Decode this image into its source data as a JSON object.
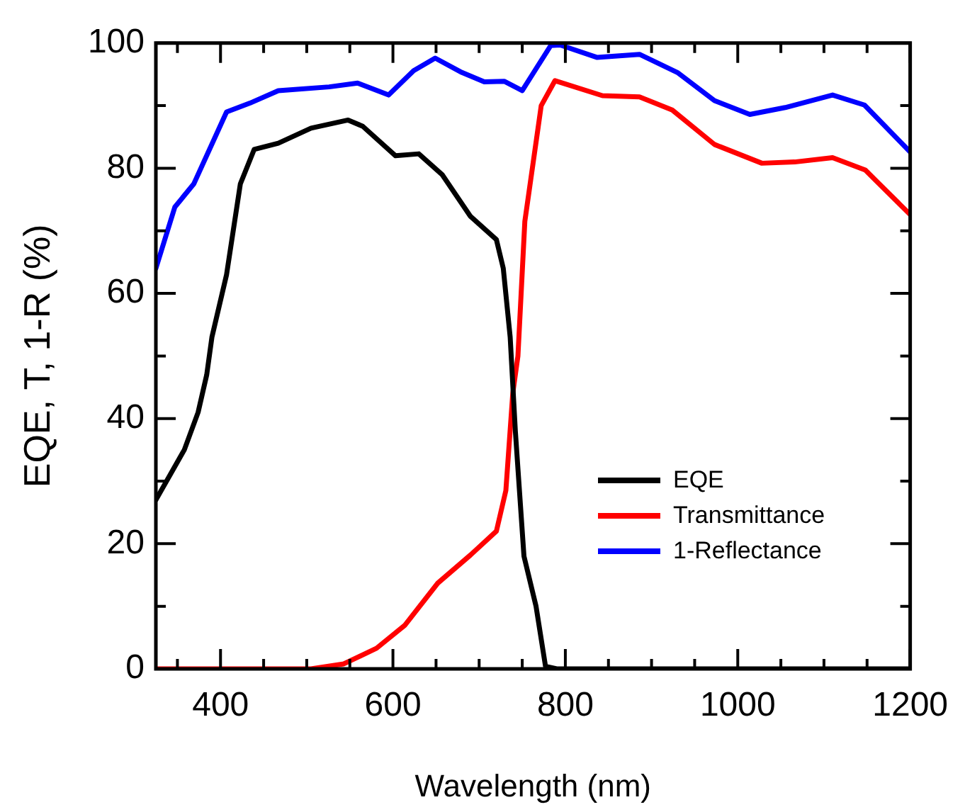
{
  "chart_data": {
    "type": "line",
    "xlabel": "Wavelength (nm)",
    "ylabel": "EQE, T, 1-R (%)",
    "xlim": [
      325,
      1200
    ],
    "ylim": [
      0,
      100
    ],
    "xticks": [
      {
        "value": 350,
        "label": null
      },
      400,
      {
        "value": 450,
        "label": null
      },
      {
        "value": 500,
        "label": null
      },
      {
        "value": 550,
        "label": null
      },
      600,
      {
        "value": 650,
        "label": null
      },
      {
        "value": 700,
        "label": null
      },
      {
        "value": 750,
        "label": null
      },
      800,
      {
        "value": 850,
        "label": null
      },
      {
        "value": 900,
        "label": null
      },
      {
        "value": 950,
        "label": null
      },
      1000,
      {
        "value": 1050,
        "label": null
      },
      {
        "value": 1100,
        "label": null
      },
      {
        "value": 1150,
        "label": null
      },
      1200
    ],
    "yticks": [
      0,
      {
        "value": 10,
        "label": null
      },
      20,
      {
        "value": 30,
        "label": null
      },
      40,
      {
        "value": 50,
        "label": null
      },
      60,
      {
        "value": 70,
        "label": null
      },
      80,
      {
        "value": 90,
        "label": null
      },
      100
    ],
    "grid": false,
    "legend": "right",
    "marker": "none",
    "line_style": "solid",
    "series": [
      {
        "name": "EQE",
        "color": "#000000",
        "x": [
          325,
          358,
          374,
          384,
          390,
          407,
          423,
          439,
          467,
          505,
          548,
          565,
          603,
          630,
          657,
          690,
          720,
          728,
          736,
          742,
          752,
          766,
          777,
          790,
          1000,
          1200
        ],
        "values": [
          27,
          35,
          41,
          47,
          53,
          63,
          77.5,
          83,
          84,
          86.4,
          87.7,
          86.7,
          82,
          82.3,
          79,
          72.3,
          68.6,
          64,
          53,
          38,
          18,
          10,
          0.4,
          0,
          0,
          0
        ]
      },
      {
        "name": "Transmittance",
        "color": "#ff0000",
        "x": [
          325,
          400,
          505,
          543,
          581,
          614,
          652,
          690,
          720,
          731,
          739,
          745,
          753,
          772,
          788,
          843,
          886,
          924,
          973,
          1028,
          1066,
          1110,
          1148,
          1200
        ],
        "values": [
          0,
          0,
          0,
          0.8,
          3.3,
          7,
          13.7,
          18.2,
          22,
          28.5,
          44,
          50,
          71.5,
          90,
          94,
          91.6,
          91.4,
          89.3,
          83.8,
          80.8,
          81,
          81.7,
          79.7,
          72.6
        ]
      },
      {
        "name": "1-Reflectance",
        "color": "#0000ff",
        "x": [
          325,
          347,
          369,
          407,
          434,
          467,
          526,
          559,
          595,
          624,
          649,
          680,
          706,
          729,
          750,
          783,
          794,
          837,
          886,
          930,
          973,
          1014,
          1055,
          1110,
          1147,
          1200
        ],
        "values": [
          64,
          73.8,
          77.5,
          89,
          90.4,
          92.4,
          93,
          93.6,
          91.7,
          95.6,
          97.6,
          95.3,
          93.8,
          93.9,
          92.4,
          99.6,
          99.7,
          97.7,
          98.2,
          95.3,
          90.8,
          88.6,
          89.7,
          91.7,
          90.1,
          82.6
        ]
      }
    ]
  }
}
